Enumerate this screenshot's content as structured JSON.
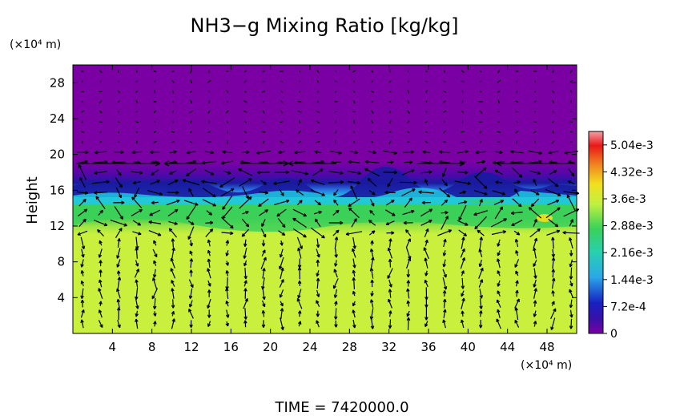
{
  "chart_data": {
    "type": "heatmap",
    "title": "NH3−g Mixing Ratio [kg/kg]",
    "xunit": "(×10⁴ m)",
    "yunit": "(×10⁴ m)",
    "ylabel": "Height",
    "xlabel": "",
    "xlim": [
      0,
      51
    ],
    "ylim": [
      0,
      30
    ],
    "x_ticks": [
      "4",
      "8",
      "12",
      "16",
      "20",
      "24",
      "28",
      "32",
      "36",
      "40",
      "44",
      "48"
    ],
    "x_tick_values": [
      4,
      8,
      12,
      16,
      20,
      24,
      28,
      32,
      36,
      40,
      44,
      48
    ],
    "y_ticks": [
      "4",
      "8",
      "12",
      "16",
      "20",
      "24",
      "28"
    ],
    "y_tick_values": [
      4,
      8,
      12,
      16,
      20,
      24,
      28
    ],
    "colorbar": {
      "range": [
        0,
        0.0054
      ],
      "ticks": [
        "0",
        "7.2e-4",
        "1.44e-3",
        "2.16e-3",
        "2.88e-3",
        "3.6e-3",
        "4.32e-3",
        "5.04e-3"
      ],
      "tick_values": [
        0,
        0.00072,
        0.00144,
        0.00216,
        0.00288,
        0.0036,
        0.00432,
        0.00504
      ]
    },
    "field_layers": [
      {
        "region": "upper",
        "y_range": [
          17,
          30
        ],
        "value": 2e-05
      },
      {
        "region": "transition-dark",
        "y_range": [
          15.5,
          17
        ],
        "value": 0.0006
      },
      {
        "region": "band",
        "y_range": [
          12.5,
          15.5
        ],
        "value": 0.0022
      },
      {
        "region": "lower",
        "y_range": [
          0,
          12
        ],
        "value": 0.0039
      }
    ],
    "vector_field": true
  },
  "footer": {
    "time_label": "TIME  =  7420000.0"
  },
  "colors": {
    "upper": "#7b00a4",
    "dark_blue": "#1a1aa0",
    "cyan": "#20c8e0",
    "green": "#3ad15a",
    "yellow_green": "#c9f03c",
    "yellow": "#f2e020",
    "orange": "#f08020",
    "red": "#e81818",
    "pink": "#f4a0a8"
  }
}
